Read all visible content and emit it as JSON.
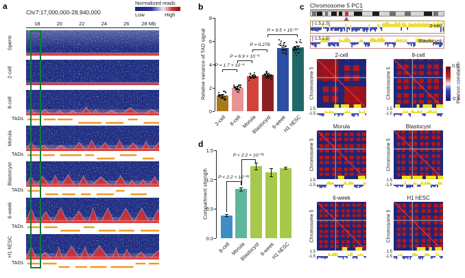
{
  "figure": {
    "panel_a": {
      "label": "a",
      "title": "Chr7:17,000,000-28,940,000",
      "colorbar": {
        "title": "Normalized reads",
        "low": "Low",
        "high": "High"
      },
      "axis_ticks": [
        "18",
        "20",
        "22",
        "24",
        "26",
        "28 Mb"
      ],
      "tads_label": "TADs",
      "rows": [
        {
          "name": "Sperm",
          "tads": false
        },
        {
          "name": "2-cell",
          "tads": false
        },
        {
          "name": "8-cell",
          "tads": true
        },
        {
          "name": "Morula",
          "tads": true
        },
        {
          "name": "Blastocyst",
          "tads": true
        },
        {
          "name": "6-week",
          "tads": true
        },
        {
          "name": "H1 hESC",
          "tads": true
        }
      ]
    },
    "panel_c": {
      "label": "c",
      "title": "Chromosome 5 PC1",
      "pc1_tracks": [
        {
          "range": "[-1.5,1.5]",
          "name": "2-cell",
          "border": "#a8913f"
        },
        {
          "range": "[-1.5,1.5]",
          "name": "Blastocyst",
          "border": "#cc8484"
        }
      ],
      "scale": {
        "hi": "1.5",
        "lo": "-1.5"
      },
      "heatmaps": [
        {
          "title": "2-cell",
          "ylabel": "Chromosome 5"
        },
        {
          "title": "8-cell",
          "ylabel": "Chromosome 5"
        },
        {
          "title": "Morula",
          "ylabel": "Chromosome 5"
        },
        {
          "title": "Blastocyst",
          "ylabel": "Chromosome 5"
        },
        {
          "title": "6-week",
          "ylabel": "Chromosome 5"
        },
        {
          "title": "H1 hESC",
          "ylabel": "Chromosome 5"
        }
      ],
      "colorbar": {
        "max": "0.5",
        "min": "-0.5",
        "label": "Pearson correlation"
      }
    }
  },
  "colors": {
    "hic_navy": "#1f2e82",
    "hic_red": "#d43c3c",
    "tad_orange": "#f09a1c",
    "highlight_green": "#0e7a3e",
    "corr_red": "#b61616",
    "corr_blue": "#18267d",
    "pc1_yellow": "#e8d91d"
  },
  "chart_data": [
    {
      "id": "b",
      "panel_label": "b",
      "type": "bar",
      "title": "",
      "xlabel": "",
      "ylabel": "Relative variance of TAD signal",
      "categories": [
        "2-cell",
        "8-cell",
        "Morula",
        "Blastocyst",
        "6-week",
        "H1 hESC"
      ],
      "values": [
        1.35,
        2.0,
        3.0,
        3.1,
        5.4,
        5.45
      ],
      "errors": [
        0.1,
        0.12,
        0.12,
        0.12,
        0.15,
        0.12
      ],
      "colors": [
        "#a87a1e",
        "#e89494",
        "#d5423e",
        "#8e2023",
        "#2c4fa5",
        "#206868"
      ],
      "ylim": [
        0,
        8
      ],
      "yticks": [
        "0",
        "2",
        "4",
        "6",
        "8"
      ],
      "grid": false,
      "legend": "none",
      "significance": [
        {
          "label": "P = 1.7 × 10⁻⁴",
          "from": 0,
          "to": 1,
          "y": 3.6
        },
        {
          "label": "P = 6.9 × 10⁻⁹",
          "from": 1,
          "to": 2,
          "y": 4.35
        },
        {
          "label": "P = 0.278",
          "from": 2,
          "to": 3,
          "y": 5.3
        },
        {
          "label": "P = 9.5 × 10⁻¹³",
          "from": 3,
          "to": 5,
          "y": 6.6
        }
      ]
    },
    {
      "id": "d",
      "panel_label": "d",
      "type": "bar",
      "title": "",
      "xlabel": "",
      "ylabel": "Compartment strength",
      "categories": [
        "8-cell",
        "Morula",
        "Blastocyst",
        "6-week",
        "H1 hESC"
      ],
      "values": [
        0.39,
        0.84,
        1.23,
        1.13,
        1.2
      ],
      "errors": [
        0.02,
        0.03,
        0.06,
        0.07,
        0.02
      ],
      "colors": [
        "#3e8ec6",
        "#5fb79b",
        "#a6c94b",
        "#a6c94b",
        "#a6c94b"
      ],
      "ylim": [
        0,
        1.5
      ],
      "yticks": [
        "0.0",
        "0.5",
        "1.0",
        "1.5"
      ],
      "grid": false,
      "legend": "none",
      "significance": [
        {
          "label": "P < 2.2 × 10⁻¹⁶",
          "from": 0,
          "to": 1,
          "y": 0.97
        },
        {
          "label": "P < 2.2 × 10⁻¹⁶",
          "from": 1,
          "to": 2,
          "y": 1.35
        }
      ]
    }
  ]
}
